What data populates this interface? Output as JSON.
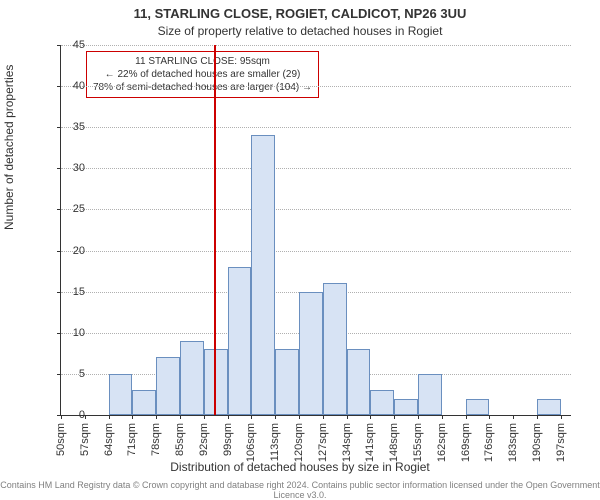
{
  "titles": {
    "line1": "11, STARLING CLOSE, ROGIET, CALDICOT, NP26 3UU",
    "line2": "Size of property relative to detached houses in Rogiet"
  },
  "axes": {
    "xlabel": "Distribution of detached houses by size in Rogiet",
    "ylabel": "Number of detached properties"
  },
  "caption": "Contains HM Land Registry data © Crown copyright and database right 2024. Contains public sector information licensed under the Open Government Licence v3.0.",
  "chart": {
    "type": "histogram",
    "ylim": [
      0,
      45
    ],
    "ytick_step": 5,
    "xlim_sqm": [
      50,
      200
    ],
    "xtick_start": 50,
    "xtick_step": 7,
    "xtick_count": 22,
    "xtick_suffix": "sqm",
    "bar_fill": "#d7e3f4",
    "bar_stroke": "#6a8fbf",
    "grid_color": "#b0b0b0",
    "marker_line": {
      "x_sqm": 95,
      "color": "#cc0000"
    },
    "bins": [
      {
        "start_sqm": 50,
        "count": 0
      },
      {
        "start_sqm": 57,
        "count": 0
      },
      {
        "start_sqm": 64,
        "count": 5
      },
      {
        "start_sqm": 71,
        "count": 3
      },
      {
        "start_sqm": 78,
        "count": 7
      },
      {
        "start_sqm": 85,
        "count": 9
      },
      {
        "start_sqm": 92,
        "count": 8
      },
      {
        "start_sqm": 99,
        "count": 18
      },
      {
        "start_sqm": 106,
        "count": 34
      },
      {
        "start_sqm": 113,
        "count": 8
      },
      {
        "start_sqm": 120,
        "count": 15
      },
      {
        "start_sqm": 127,
        "count": 16
      },
      {
        "start_sqm": 134,
        "count": 8
      },
      {
        "start_sqm": 141,
        "count": 3
      },
      {
        "start_sqm": 148,
        "count": 2
      },
      {
        "start_sqm": 155,
        "count": 5
      },
      {
        "start_sqm": 162,
        "count": 0
      },
      {
        "start_sqm": 169,
        "count": 2
      },
      {
        "start_sqm": 176,
        "count": 0
      },
      {
        "start_sqm": 183,
        "count": 0
      },
      {
        "start_sqm": 190,
        "count": 2
      }
    ]
  },
  "annotation": {
    "lines": [
      "11 STARLING CLOSE: 95sqm",
      "← 22% of detached houses are smaller (29)",
      "78% of semi-detached houses are larger (104) →"
    ],
    "border_color": "#cc0000"
  }
}
